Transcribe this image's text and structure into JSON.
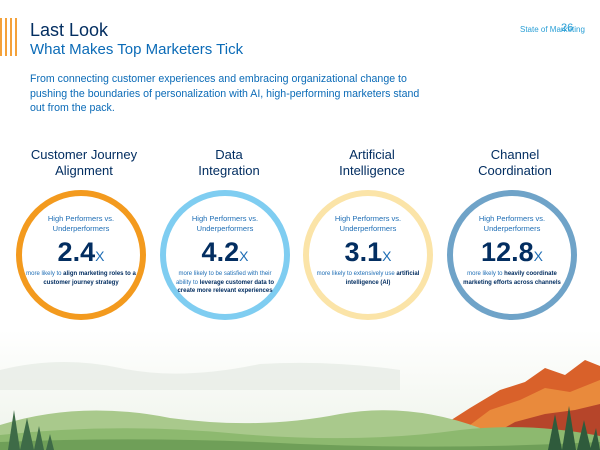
{
  "header": {
    "title": "Last Look",
    "subtitle": "What Makes Top Marketers Tick",
    "section": "State of Marketing",
    "page_number": "26"
  },
  "intro": "From connecting customer experiences and embracing organizational change to pushing the boundaries of personalization with AI, high-performing marketers stand out from the pack.",
  "columns": [
    {
      "title_line1": "Customer Journey",
      "title_line2": "Alignment",
      "vs_line1": "High Performers vs.",
      "vs_line2": "Underperformers",
      "value": "2.4",
      "suffix": "X",
      "desc_pre": "more likely to ",
      "desc_bold": "align marketing roles to a customer journey strategy",
      "desc_post": "",
      "color": "#f39a1e"
    },
    {
      "title_line1": "Data",
      "title_line2": "Integration",
      "vs_line1": "High Performers vs.",
      "vs_line2": "Underperformers",
      "value": "4.2",
      "suffix": "X",
      "desc_pre": "more likely to be satisfied with their ability to ",
      "desc_bold": "leverage customer data to create more relevant experiences",
      "desc_post": "",
      "color": "#7fcdf1"
    },
    {
      "title_line1": "Artificial",
      "title_line2": "Intelligence",
      "vs_line1": "High Performers vs.",
      "vs_line2": "Underperformers",
      "value": "3.1",
      "suffix": "X",
      "desc_pre": "more likely to extensively use ",
      "desc_bold": "artificial intelligence (AI)",
      "desc_post": "",
      "color": "#fbe4a8"
    },
    {
      "title_line1": "Channel",
      "title_line2": "Coordination",
      "vs_line1": "High Performers vs.",
      "vs_line2": "Underperformers",
      "value": "12.8",
      "suffix": "X",
      "desc_pre": "more likely to ",
      "desc_bold": "heavily coordinate marketing efforts across channels",
      "desc_post": "",
      "color": "#6fa3c8"
    }
  ]
}
